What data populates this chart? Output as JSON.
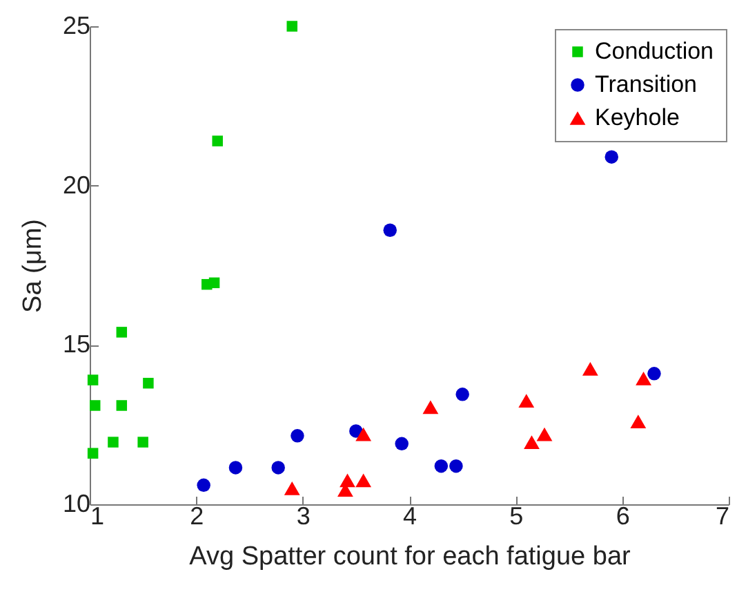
{
  "chart_data": {
    "type": "scatter",
    "xlabel": "Avg Spatter count for each fatigue bar",
    "ylabel": "Sa (μm)",
    "xlim": [
      1,
      7
    ],
    "xticks": [
      1,
      2,
      3,
      4,
      5,
      6,
      7
    ],
    "ylim": [
      10,
      25
    ],
    "yticks": [
      10,
      15,
      20,
      25
    ],
    "grid": false,
    "legend": "top right",
    "series": [
      {
        "name": "Conduction",
        "color": "#00cc00",
        "marker": "square",
        "x": [
          1.03,
          1.03,
          1.05,
          1.22,
          1.3,
          1.3,
          1.5,
          1.55,
          2.1,
          2.17,
          2.2,
          2.9
        ],
        "values": [
          11.6,
          13.9,
          13.1,
          11.95,
          13.1,
          15.4,
          11.95,
          13.8,
          16.9,
          16.95,
          21.4,
          25.0
        ]
      },
      {
        "name": "Transition",
        "color": "#0000cc",
        "marker": "circle",
        "x": [
          2.07,
          2.37,
          2.77,
          2.95,
          3.5,
          3.82,
          3.93,
          4.3,
          4.44,
          4.5,
          5.9,
          6.3
        ],
        "values": [
          10.6,
          11.15,
          11.15,
          12.15,
          12.3,
          18.6,
          11.9,
          11.2,
          11.2,
          13.45,
          20.9,
          14.1
        ]
      },
      {
        "name": "Keyhole",
        "color": "#ff0000",
        "marker": "triangle",
        "x": [
          2.9,
          3.4,
          3.42,
          3.57,
          3.57,
          4.2,
          5.1,
          5.15,
          5.27,
          5.7,
          6.15,
          6.2
        ],
        "values": [
          10.5,
          10.45,
          10.75,
          10.75,
          12.2,
          13.05,
          13.25,
          11.95,
          12.2,
          14.25,
          12.6,
          13.95
        ]
      }
    ]
  }
}
